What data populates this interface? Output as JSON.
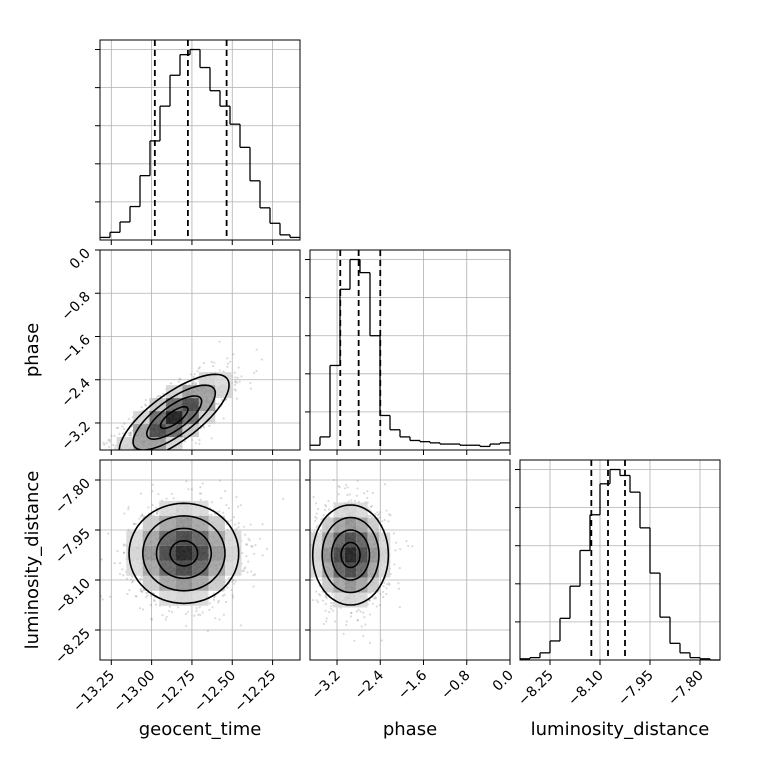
{
  "chart_data": {
    "type": "corner",
    "parameters": [
      "geocent_time",
      "phase",
      "luminosity_distance"
    ],
    "axis_labels": {
      "geocent_time": "geocent_time",
      "phase": "phase",
      "luminosity_distance": "luminosity_distance"
    },
    "ticks": {
      "geocent_time": [
        "−13.25",
        "−13.00",
        "−12.75",
        "−12.50",
        "−12.25"
      ],
      "phase": [
        "−3.2",
        "−2.4",
        "−1.6",
        "−0.8",
        "0.0"
      ],
      "luminosity_distance": [
        "−8.25",
        "−8.10",
        "−7.95",
        "−7.80"
      ]
    },
    "ranges": {
      "geocent_time": [
        -13.32,
        -12.08
      ],
      "phase": [
        -3.7,
        0.0
      ],
      "luminosity_distance": [
        -8.34,
        -7.74
      ]
    },
    "grid": true,
    "histograms": {
      "geocent_time": {
        "edges": [
          -13.32,
          -13.258,
          -13.196,
          -13.134,
          -13.072,
          -13.01,
          -12.948,
          -12.886,
          -12.824,
          -12.762,
          -12.7,
          -12.638,
          -12.576,
          -12.514,
          -12.452,
          -12.39,
          -12.328,
          -12.266,
          -12.204,
          -12.142,
          -12.08
        ],
        "counts": [
          2,
          6,
          14,
          26,
          50,
          77,
          104,
          128,
          144,
          148,
          134,
          116,
          104,
          90,
          72,
          46,
          25,
          13,
          4,
          2
        ],
        "quantiles": [
          -12.98,
          -12.775,
          -12.535
        ]
      },
      "phase": {
        "edges": [
          -3.7,
          -3.515,
          -3.33,
          -3.145,
          -2.96,
          -2.775,
          -2.59,
          -2.405,
          -2.22,
          -2.035,
          -1.85,
          -1.665,
          -1.48,
          -1.295,
          -1.11,
          -0.925,
          -0.74,
          -0.555,
          -0.37,
          -0.185,
          0.0
        ],
        "counts": [
          4,
          11,
          71,
          135,
          160,
          149,
          96,
          29,
          17,
          11,
          8,
          7,
          6,
          5,
          5,
          4,
          4,
          3,
          5,
          6
        ],
        "quantiles": [
          -3.14,
          -2.8,
          -2.4
        ]
      },
      "luminosity_distance": {
        "edges": [
          -8.34,
          -8.31,
          -8.28,
          -8.25,
          -8.22,
          -8.19,
          -8.16,
          -8.13,
          -8.1,
          -8.07,
          -8.04,
          -8.01,
          -7.98,
          -7.95,
          -7.92,
          -7.89,
          -7.86,
          -7.83,
          -7.8,
          -7.77,
          -7.74
        ],
        "counts": [
          1,
          2,
          6,
          16,
          35,
          62,
          92,
          122,
          148,
          160,
          155,
          141,
          111,
          73,
          36,
          14,
          6,
          2,
          1,
          0
        ],
        "quantiles": [
          -8.126,
          -8.076,
          -8.025
        ]
      }
    },
    "pairs": [
      {
        "x": "geocent_time",
        "y": "phase",
        "correlation": 0.75,
        "peak": [
          -12.86,
          -3.1
        ],
        "spread": [
          0.17,
          0.4
        ]
      },
      {
        "x": "geocent_time",
        "y": "luminosity_distance",
        "correlation": 0.0,
        "peak": [
          -12.8,
          -8.02
        ],
        "spread": [
          0.17,
          0.075
        ]
      },
      {
        "x": "phase",
        "y": "luminosity_distance",
        "correlation": 0.0,
        "peak": [
          -2.95,
          -8.025
        ],
        "spread": [
          0.35,
          0.075
        ]
      }
    ],
    "contour_levels": [
      0.118,
      0.393,
      0.675,
      0.865
    ]
  }
}
